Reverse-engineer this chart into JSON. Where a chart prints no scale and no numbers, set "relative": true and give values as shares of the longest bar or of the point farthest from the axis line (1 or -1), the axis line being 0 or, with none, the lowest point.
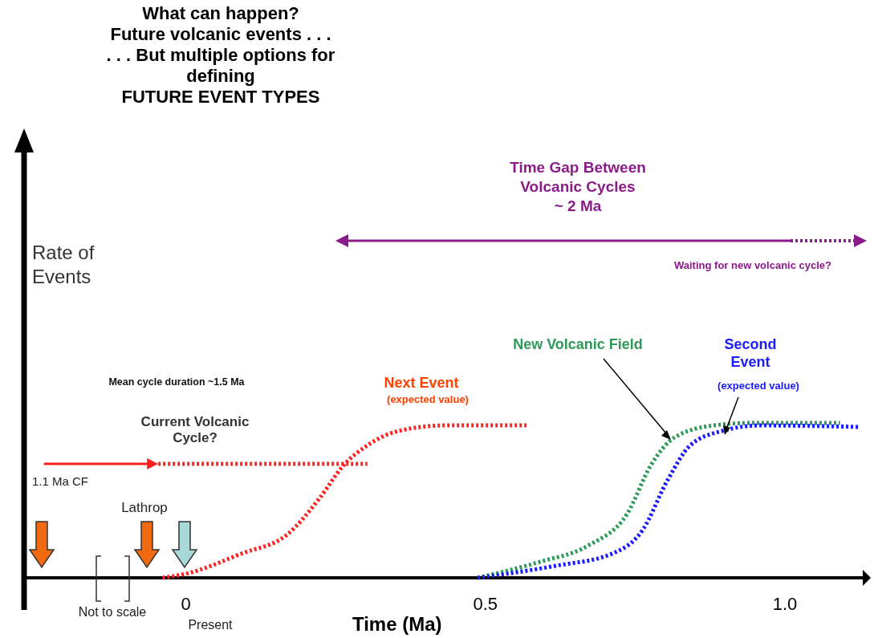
{
  "chart_data": {
    "type": "line",
    "relative": true,
    "title": "What can happen?\nFuture volcanic events . . .\n. . . But multiple options for\ndefining\nFUTURE EVENT TYPES",
    "xlabel": "Time (Ma)",
    "xlim": [
      -0.27,
      1.13
    ],
    "xticks": [
      0,
      0.5,
      {
        "value": 1,
        "label": "1.0"
      }
    ],
    "tick_labels": "x",
    "grid": false,
    "legend": false,
    "marker": "none",
    "series": [
      {
        "name": "Next Event",
        "color": "#ff2020",
        "line_style": "dotted",
        "x": [
          -0.039,
          0,
          0.092,
          0.171,
          0.224,
          0.263,
          0.303,
          0.355,
          0.434,
          0.572
        ],
        "values": [
          0,
          0.026,
          0.155,
          0.285,
          0.518,
          0.725,
          0.855,
          0.948,
          0.984,
          0.984
        ]
      },
      {
        "name": "New Volcanic Field",
        "color": "#2e9a5a",
        "line_style": "dotted",
        "x": [
          0.487,
          0.592,
          0.671,
          0.737,
          0.776,
          0.816,
          0.882,
          0.947,
          1.092
        ],
        "values": [
          0,
          0.104,
          0.207,
          0.415,
          0.725,
          0.907,
          0.984,
          1,
          1
        ]
      },
      {
        "name": "Second Event",
        "color": "#1a1aff",
        "line_style": "dotted",
        "x": [
          0.487,
          0.618,
          0.711,
          0.763,
          0.803,
          0.842,
          0.895,
          0.961,
          1.125
        ],
        "values": [
          0,
          0.078,
          0.155,
          0.311,
          0.622,
          0.855,
          0.948,
          0.984,
          0.974
        ]
      },
      {
        "name": "Current Volcanic Cycle?",
        "color": "#ff2020",
        "line_style": "dotted",
        "x": [
          -0.046,
          0.303
        ],
        "values": [
          0.736,
          0.736
        ]
      }
    ],
    "annotations": [
      "Mean cycle duration ~1.5 Ma",
      "(expected value)",
      "(expected value)",
      "Time Gap Between\nVolcanic Cycles\n~ 2 Ma",
      "Waiting for new volcanic cycle?",
      "Lathrop",
      "Not to scale",
      "Present",
      "Rate of\nEvents",
      "1.1 Ma CF"
    ]
  }
}
